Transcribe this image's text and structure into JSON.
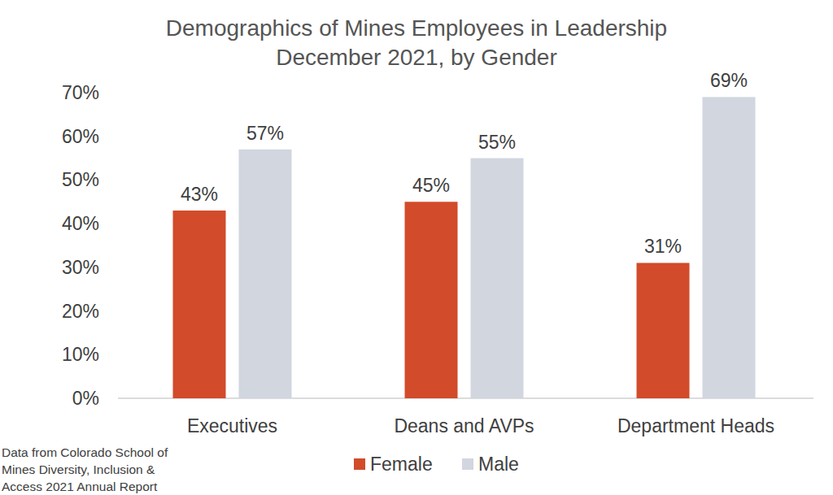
{
  "chart_data": {
    "type": "bar",
    "title": "Demographics of Mines Employees in Leadership",
    "subtitle": "December 2021, by Gender",
    "categories": [
      "Executives",
      "Deans and AVPs",
      "Department Heads"
    ],
    "series": [
      {
        "name": "Female",
        "color": "#d24b2a",
        "values": [
          43,
          45,
          31
        ],
        "value_labels": [
          "43%",
          "45%",
          "31%"
        ]
      },
      {
        "name": "Male",
        "color": "#d1d6df",
        "values": [
          57,
          55,
          69
        ],
        "value_labels": [
          "57%",
          "55%",
          "69%"
        ]
      }
    ],
    "ylim": [
      0,
      70
    ],
    "yticks": [
      {
        "value": 0,
        "label": "0%"
      },
      {
        "value": 10,
        "label": "10%"
      },
      {
        "value": 20,
        "label": "20%"
      },
      {
        "value": 30,
        "label": "30%"
      },
      {
        "value": 40,
        "label": "40%"
      },
      {
        "value": 50,
        "label": "50%"
      },
      {
        "value": 60,
        "label": "60%"
      },
      {
        "value": 70,
        "label": "70%"
      }
    ],
    "grid": false,
    "legend": "bottom",
    "data_labels": true,
    "annotations": [
      "Data from Colorado School of",
      "Mines Diversity, Inclusion &",
      "Access 2021 Annual Report"
    ]
  }
}
